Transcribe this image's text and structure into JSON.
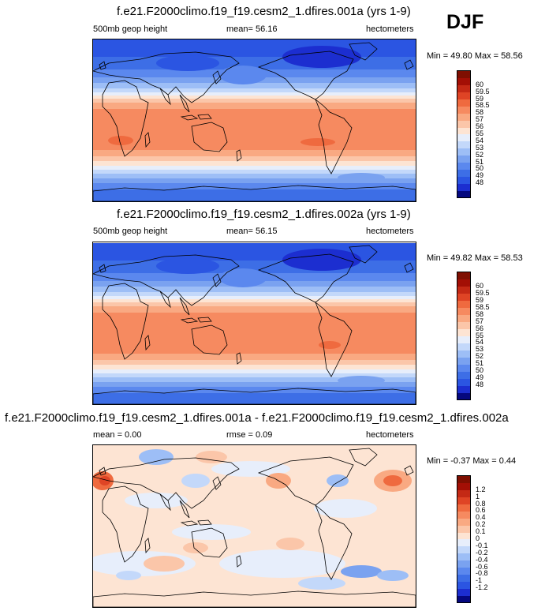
{
  "season": "DJF",
  "colors": {
    "mean_scale": [
      "#05087f",
      "#1c2ed0",
      "#2b55e2",
      "#3d6ee6",
      "#5b88ee",
      "#7aa2f0",
      "#9dbef6",
      "#c3d8fa",
      "#e7eefb",
      "#fde4d3",
      "#fbc6a9",
      "#f9a982",
      "#f68a60",
      "#ef6a3f",
      "#df4425",
      "#c42915",
      "#a30f05",
      "#7f0f01"
    ],
    "diff_scale": [
      "#05087f",
      "#1c2ed0",
      "#2b55e2",
      "#3d6ee6",
      "#5b88ee",
      "#7aa2f0",
      "#9dbef6",
      "#c3d8fa",
      "#e7eefb",
      "#fde4d3",
      "#fbc6a9",
      "#f9a982",
      "#f68a60",
      "#ef6a3f",
      "#df4425",
      "#c42915",
      "#a30f05",
      "#7f0f01"
    ]
  },
  "chart_data": [
    {
      "type": "heatmap",
      "title": "f.e21.F2000climo.f19_f19.cesm2_1.dfires.001a (yrs 1-9)",
      "left_label": "500mb geop height",
      "mean_text": "mean=  56.16",
      "units": "hectometers",
      "min_max_text": "Min =  49.80 Max =  58.56",
      "stats": {
        "mean": 56.16,
        "min": 49.8,
        "max": 58.56
      },
      "colorbar_levels": [
        "48",
        "49",
        "50",
        "51",
        "52",
        "53",
        "54",
        "55",
        "56",
        "57",
        "58",
        "58.5",
        "59",
        "59.5",
        "60"
      ]
    },
    {
      "type": "heatmap",
      "title": "f.e21.F2000climo.f19_f19.cesm2_1.dfires.002a (yrs 1-9)",
      "left_label": "500mb geop height",
      "mean_text": "mean=  56.15",
      "units": "hectometers",
      "min_max_text": "Min =  49.82 Max =  58.53",
      "stats": {
        "mean": 56.15,
        "min": 49.82,
        "max": 58.53
      },
      "colorbar_levels": [
        "48",
        "49",
        "50",
        "51",
        "52",
        "53",
        "54",
        "55",
        "56",
        "57",
        "58",
        "58.5",
        "59",
        "59.5",
        "60"
      ]
    },
    {
      "type": "heatmap",
      "title": "f.e21.F2000climo.f19_f19.cesm2_1.dfires.001a - f.e21.F2000climo.f19_f19.cesm2_1.dfires.002a",
      "left_label": "mean =   0.00",
      "mean_text": "rmse =  0.09",
      "units": "hectometers",
      "min_max_text": "Min = -0.37 Max =   0.44",
      "stats": {
        "mean": 0.0,
        "rmse": 0.09,
        "min": -0.37,
        "max": 0.44
      },
      "colorbar_levels": [
        "-1.2",
        "-1",
        "-0.8",
        "-0.6",
        "-0.4",
        "-0.2",
        "-0.1",
        "0",
        "0.1",
        "0.2",
        "0.4",
        "0.6",
        "0.8",
        "1",
        "1.2"
      ]
    }
  ]
}
